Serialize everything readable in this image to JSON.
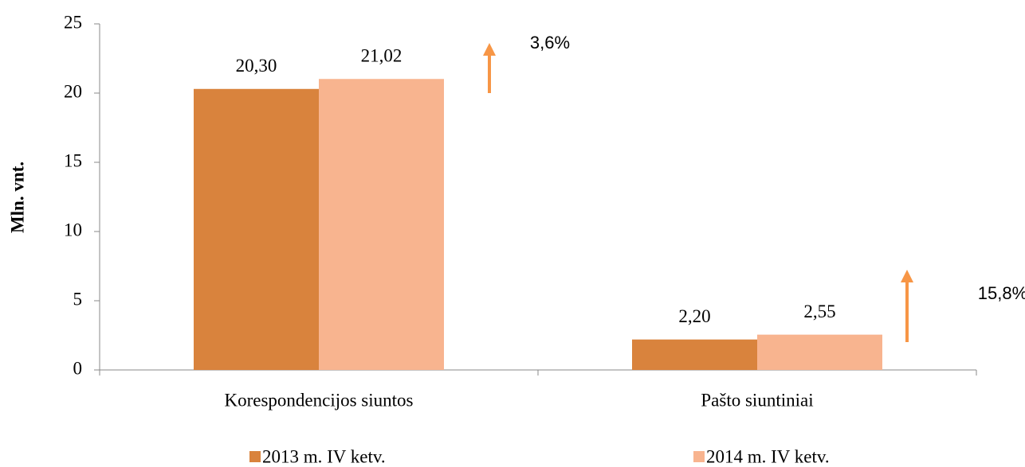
{
  "chart_data": {
    "type": "bar",
    "y_label": "Mln. vnt.",
    "categories": [
      "Korespondencijos siuntos",
      "Pašto siuntiniai"
    ],
    "series": [
      {
        "name": "2013 m. IV ketv.",
        "color": "#d9833d",
        "values": [
          20.3,
          2.2
        ],
        "value_labels": [
          "20,30",
          "2,20"
        ]
      },
      {
        "name": "2014 m. IV ketv.",
        "color": "#f8b48f",
        "values": [
          21.02,
          2.55
        ],
        "value_labels": [
          "21,02",
          "2,55"
        ]
      }
    ],
    "annotations": [
      {
        "text": "3,6%"
      },
      {
        "text": "15,8%"
      }
    ],
    "ylim": [
      0,
      25
    ],
    "yticks": [
      0,
      5,
      10,
      15,
      20,
      25
    ],
    "grid": false
  }
}
